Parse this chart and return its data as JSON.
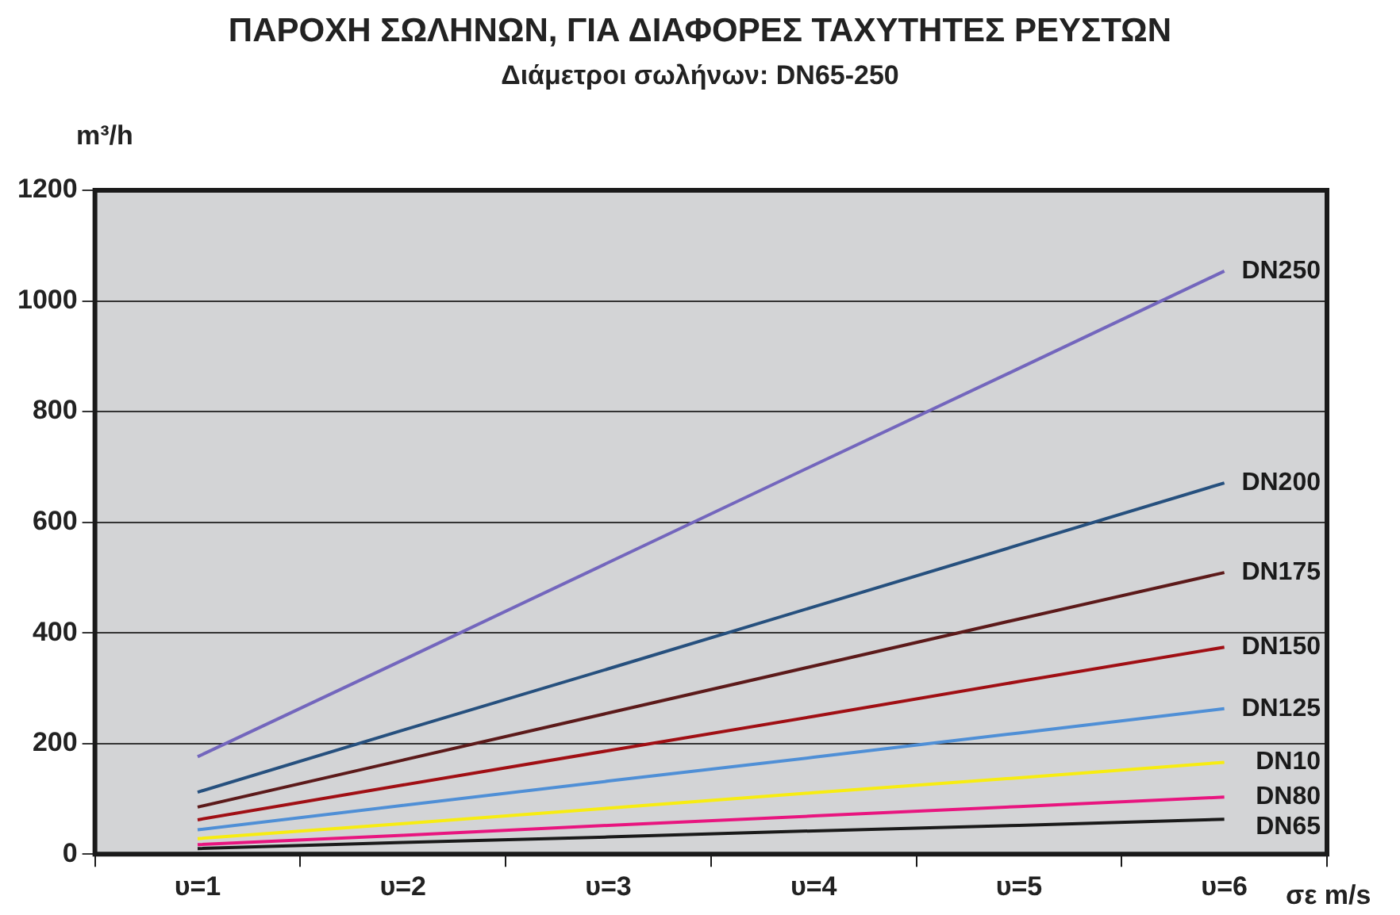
{
  "chart_data": {
    "type": "line",
    "title": "ΠΑΡΟΧΗ ΣΩΛΗΝΩΝ, ΓΙΑ ΔΙΑΦΟΡΕΣ ΤΑΧΥΤΗΤΕΣ ΡΕΥΣΤΩΝ",
    "subtitle": "Διάμετροι σωλήνων: DN65-250",
    "ylabel": "m³/h",
    "xlabel": "σε m/s",
    "categories": [
      "υ=1",
      "υ=2",
      "υ=3",
      "υ=4",
      "υ=5",
      "υ=6"
    ],
    "series": [
      {
        "name": "DN250",
        "color": "#7366bd",
        "values": [
          176,
          351,
          527,
          703,
          878,
          1054
        ]
      },
      {
        "name": "DN200",
        "color": "#26507e",
        "values": [
          112,
          224,
          335,
          447,
          559,
          671
        ]
      },
      {
        "name": "DN175",
        "color": "#5c1a1a",
        "values": [
          85,
          170,
          255,
          340,
          425,
          509
        ]
      },
      {
        "name": "DN150",
        "color": "#a00f14",
        "values": [
          62,
          125,
          187,
          249,
          312,
          374
        ]
      },
      {
        "name": "DN125",
        "color": "#4f8fd6",
        "values": [
          44,
          88,
          132,
          175,
          219,
          263
        ]
      },
      {
        "name": "DN10",
        "color": "#f7ec12",
        "values": [
          28,
          55,
          83,
          111,
          138,
          166
        ]
      },
      {
        "name": "DN80",
        "color": "#e8157f",
        "values": [
          17,
          34,
          52,
          69,
          86,
          103
        ]
      },
      {
        "name": "DN65",
        "color": "#1a1a1a",
        "values": [
          10,
          21,
          31,
          42,
          52,
          63
        ]
      }
    ],
    "ylim": [
      0,
      1200
    ],
    "yticks": [
      0,
      200,
      400,
      600,
      800,
      1000,
      1200
    ],
    "grid": "y",
    "legend": false,
    "marker": "none",
    "line_style": "solid"
  }
}
